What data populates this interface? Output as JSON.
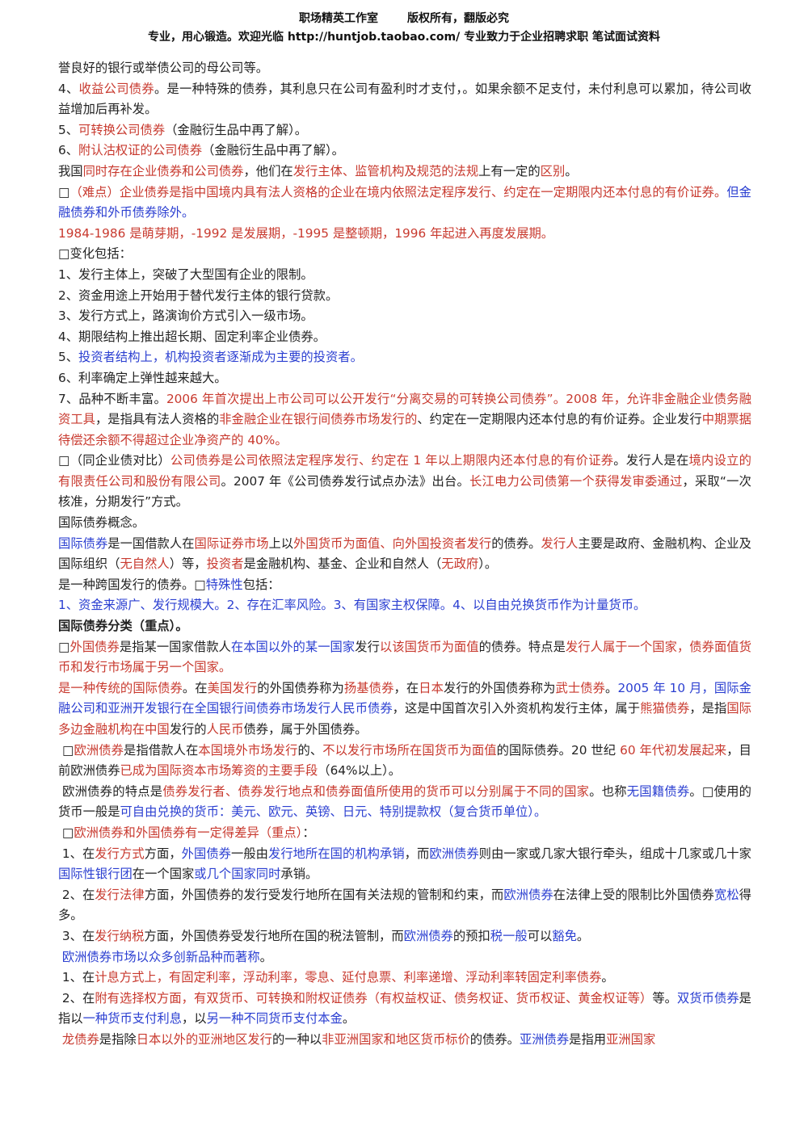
{
  "header": {
    "left": "职场精英工作室",
    "right": "版权所有，翻版必究",
    "subtitle": "专业，用心锻造。欢迎光临 http://huntjob.taobao.com/   专业致力于企业招聘求职 笔试面试资料"
  },
  "paragraphs": [
    {
      "runs": [
        {
          "text": "誉良好的银行或举债公司的母公司等。"
        }
      ]
    },
    {
      "runs": [
        {
          "text": "4、"
        },
        {
          "text": "收益公司债券",
          "color": "#c8392e"
        },
        {
          "text": "。是一种特殊的债券，其利息只在公司有盈利时才支付，。如果余额不足支付，未付利息可以累加，待公司收益增加后再补发。"
        }
      ]
    },
    {
      "runs": [
        {
          "text": "5、"
        },
        {
          "text": "可转换公司债券",
          "color": "#c8392e"
        },
        {
          "text": "（金融衍生品中再了解）。"
        }
      ]
    },
    {
      "runs": [
        {
          "text": "6、"
        },
        {
          "text": "附认沽权证的公司债券",
          "color": "#c8392e"
        },
        {
          "text": "（金融衍生品中再了解）。"
        }
      ]
    },
    {
      "runs": [
        {
          "text": "我国"
        },
        {
          "text": "同时存在企业债券和公司债券",
          "color": "#c8392e"
        },
        {
          "text": "，他们在"
        },
        {
          "text": "发行主体、监管机构及规范的法规",
          "color": "#c8392e"
        },
        {
          "text": "上有一定的"
        },
        {
          "text": "区别",
          "color": "#c8392e"
        },
        {
          "text": "。"
        }
      ]
    },
    {
      "runs": [
        {
          "text": "□"
        },
        {
          "text": "（难点）",
          "color": "#c8392e"
        },
        {
          "text": "企业债券是指中国境内具有法人资格的企业在境内依照法定程序发行、约定在一定期限内还本付息的有价证券。",
          "color": "#c8392e"
        },
        {
          "text": "但金融债券和外币债券除外。",
          "color": "#2b3fd1"
        }
      ]
    },
    {
      "runs": [
        {
          "text": "1984-1986 是萌芽期，-1992 是发展期，-1995 是整顿期，1996 年起进入再度发展期。",
          "color": "#c8392e"
        }
      ]
    },
    {
      "runs": [
        {
          "text": "□变化包括："
        }
      ]
    },
    {
      "runs": [
        {
          "text": "1、发行主体上，突破了大型国有企业的限制。"
        }
      ]
    },
    {
      "runs": [
        {
          "text": "2、资金用途上开始用于替代发行主体的银行贷款。"
        }
      ]
    },
    {
      "runs": [
        {
          "text": "3、发行方式上，路演询价方式引入一级市场。"
        }
      ]
    },
    {
      "runs": [
        {
          "text": "4、期限结构上推出超长期、固定利率企业债券。"
        }
      ]
    },
    {
      "runs": [
        {
          "text": "5、"
        },
        {
          "text": "投资者结构上，机构投资者逐渐成为主要的投资者。",
          "color": "#2b3fd1"
        }
      ]
    },
    {
      "runs": [
        {
          "text": "6、利率确定上弹性越来越大。"
        }
      ]
    },
    {
      "runs": [
        {
          "text": "7、品种不断丰富。"
        },
        {
          "text": "2006 年首次提出上市公司可以公开发行“分离交易的可转换公司债券”。2008 年，允许非金融企业债务融资工具",
          "color": "#c8392e"
        },
        {
          "text": "，是指具有法人资格的"
        },
        {
          "text": "非金融企业在银行间债券市场发行的",
          "color": "#c8392e"
        },
        {
          "text": "、约定在一定期限内还本付息的有价证券。企业发行"
        },
        {
          "text": "中期票据待偿还余额不得超过企业净资产的 40%。",
          "color": "#c8392e"
        }
      ]
    },
    {
      "runs": [
        {
          "text": "□（同企业债对比）"
        },
        {
          "text": "公司债券是公司依照法定程序发行、约定在 1 年以上期限内还本付息的有价证券",
          "color": "#c8392e"
        },
        {
          "text": "。发行人是在"
        },
        {
          "text": "境内设立的有限责任公司和股份有限公司",
          "color": "#c8392e"
        },
        {
          "text": "。2007 年《公司债券发行试点办法》出台。"
        },
        {
          "text": "长江电力公司债第一个获得发审委通过",
          "color": "#c8392e"
        },
        {
          "text": "，采取“一次核准，分期发行”方式。"
        }
      ]
    },
    {
      "runs": [
        {
          "text": "国际债券概念。"
        }
      ]
    },
    {
      "runs": [
        {
          "text": "国际债券",
          "color": "#2b3fd1"
        },
        {
          "text": "是一国借款人在"
        },
        {
          "text": "国际证券市场",
          "color": "#c8392e"
        },
        {
          "text": "上以"
        },
        {
          "text": "外国货币为面值、向外国投资者发行",
          "color": "#c8392e"
        },
        {
          "text": "的债券。"
        },
        {
          "text": "发行人",
          "color": "#c8392e"
        },
        {
          "text": "主要是政府、金融机构、企业及国际组织（"
        },
        {
          "text": "无自然人",
          "color": "#c8392e"
        },
        {
          "text": "）等，"
        },
        {
          "text": "投资者",
          "color": "#c8392e"
        },
        {
          "text": "是金融机构、基金、企业和自然人（"
        },
        {
          "text": "无政府",
          "color": "#c8392e"
        },
        {
          "text": "）。"
        }
      ]
    },
    {
      "runs": [
        {
          "text": "是一种跨国发行的债券。□"
        },
        {
          "text": "特殊性",
          "color": "#2b3fd1"
        },
        {
          "text": "包括："
        }
      ]
    },
    {
      "runs": [
        {
          "text": "1、资金来源广、发行规模大。2、存在汇率风险。3、有国家主权保障。4、以自由兑换货币作为计量货币。",
          "color": "#2b3fd1"
        }
      ]
    },
    {
      "bold": true,
      "runs": [
        {
          "text": "国际债券分类（重点）。"
        }
      ]
    },
    {
      "runs": [
        {
          "text": "□"
        },
        {
          "text": "外国债券",
          "color": "#c8392e"
        },
        {
          "text": "是指某一国家借款人"
        },
        {
          "text": "在本国以外的某一国家",
          "color": "#2b3fd1"
        },
        {
          "text": "发行"
        },
        {
          "text": "以该国货币为面值",
          "color": "#c8392e"
        },
        {
          "text": "的债券。特点是"
        },
        {
          "text": "发行人属于一个国家，债券面值货币和发行市场属于另一个国家。",
          "color": "#c8392e"
        }
      ]
    },
    {
      "runs": [
        {
          "text": "是一种传统的国际债券",
          "color": "#c8392e"
        },
        {
          "text": "。在"
        },
        {
          "text": "美国发行",
          "color": "#c8392e"
        },
        {
          "text": "的外国债券称为"
        },
        {
          "text": "扬基债券",
          "color": "#c8392e"
        },
        {
          "text": "，在"
        },
        {
          "text": "日本",
          "color": "#c8392e"
        },
        {
          "text": "发行的外国债券称为"
        },
        {
          "text": "武士债券",
          "color": "#c8392e"
        },
        {
          "text": "。"
        },
        {
          "text": "2005 年 10 月，国际金融公司和亚洲开发银行在全国银行间债券市场发行人民币债券",
          "color": "#2b3fd1"
        },
        {
          "text": "，这是中国首次引入外资机构发行主体，属于"
        },
        {
          "text": "熊猫债券",
          "color": "#c8392e"
        },
        {
          "text": "，是指"
        },
        {
          "text": "国际多边金融机构在中国",
          "color": "#c8392e"
        },
        {
          "text": "发行的"
        },
        {
          "text": "人民币",
          "color": "#c8392e"
        },
        {
          "text": "债券，属于外国债券。"
        }
      ]
    },
    {
      "runs": [
        {
          "text": " □"
        },
        {
          "text": "欧洲债券",
          "color": "#c8392e"
        },
        {
          "text": "是指借款人在"
        },
        {
          "text": "本国境外市场发行",
          "color": "#c8392e"
        },
        {
          "text": "的、"
        },
        {
          "text": "不以发行市场所在国货币为面值",
          "color": "#c8392e"
        },
        {
          "text": "的国际债券。20 世纪 "
        },
        {
          "text": "60 年代初发展起来",
          "color": "#c8392e"
        },
        {
          "text": "，目前欧洲债券"
        },
        {
          "text": "已成为国际资本市场筹资的主要手段",
          "color": "#c8392e"
        },
        {
          "text": "（64%以上）。"
        }
      ]
    },
    {
      "runs": [
        {
          "text": " 欧洲债券的特点是"
        },
        {
          "text": "债券发行者、债券发行地点和债券面值所使用的货币可以分别属于不同的国家",
          "color": "#c8392e"
        },
        {
          "text": "。也称"
        },
        {
          "text": "无国籍债券",
          "color": "#2b3fd1"
        },
        {
          "text": "。□使用的货币一般是"
        },
        {
          "text": "可自由兑换的货币：美元、欧元、英镑、日元、特别提款权（复合货币单位）。",
          "color": "#2b3fd1"
        }
      ]
    },
    {
      "runs": [
        {
          "text": " □"
        },
        {
          "text": "欧洲债券和外国债券有一定得差异（重点）",
          "color": "#c8392e"
        },
        {
          "text": "："
        }
      ]
    },
    {
      "runs": [
        {
          "text": " 1、在"
        },
        {
          "text": "发行方式",
          "color": "#c8392e"
        },
        {
          "text": "方面，"
        },
        {
          "text": "外国债券",
          "color": "#2b3fd1"
        },
        {
          "text": "一般由"
        },
        {
          "text": "发行地所在国的机构承销",
          "color": "#2b3fd1"
        },
        {
          "text": "，而"
        },
        {
          "text": "欧洲债券",
          "color": "#2b3fd1"
        },
        {
          "text": "则由一家或几家大银行牵头，组成十几家或几十家"
        },
        {
          "text": "国际性银行团",
          "color": "#2b3fd1"
        },
        {
          "text": "在一个国家"
        },
        {
          "text": "或几个国家同时",
          "color": "#2b3fd1"
        },
        {
          "text": "承销。"
        }
      ]
    },
    {
      "runs": [
        {
          "text": " 2、在"
        },
        {
          "text": "发行法律",
          "color": "#c8392e"
        },
        {
          "text": "方面，外国债券的发行受发行地所在国有关法规的管制和约束，而"
        },
        {
          "text": "欧洲债券",
          "color": "#2b3fd1"
        },
        {
          "text": "在法律上受的限制比外国债券"
        },
        {
          "text": "宽松",
          "color": "#2b3fd1"
        },
        {
          "text": "得多。"
        }
      ]
    },
    {
      "runs": [
        {
          "text": " 3、在"
        },
        {
          "text": "发行纳税",
          "color": "#c8392e"
        },
        {
          "text": "方面，外国债券受发行地所在国的税法管制，而"
        },
        {
          "text": "欧洲债券",
          "color": "#2b3fd1"
        },
        {
          "text": "的预扣"
        },
        {
          "text": "税一般",
          "color": "#2b3fd1"
        },
        {
          "text": "可以"
        },
        {
          "text": "豁免",
          "color": "#2b3fd1"
        },
        {
          "text": "。"
        }
      ]
    },
    {
      "runs": [
        {
          "text": " "
        },
        {
          "text": "欧洲债券市场以众多创新品种而著称",
          "color": "#2b3fd1"
        },
        {
          "text": "。"
        }
      ]
    },
    {
      "runs": [
        {
          "text": " 1、在"
        },
        {
          "text": "计息方式上，有固定利率，浮动利率，零息、延付息票、利率递增、浮动利率转固定利率债券",
          "color": "#c8392e"
        },
        {
          "text": "。"
        }
      ]
    },
    {
      "runs": [
        {
          "text": " 2、在"
        },
        {
          "text": "附有选择权方面，有双货币、可转换和附权证债券（有权益权证、债务权证、货币权证、黄金权证等）",
          "color": "#c8392e"
        },
        {
          "text": "等。"
        },
        {
          "text": "双货币债券",
          "color": "#2b3fd1"
        },
        {
          "text": "是指以"
        },
        {
          "text": "一种货币支付利息",
          "color": "#2b3fd1"
        },
        {
          "text": "，以"
        },
        {
          "text": "另一种不同货币支付本金",
          "color": "#2b3fd1"
        },
        {
          "text": "。"
        }
      ]
    },
    {
      "runs": [
        {
          "text": " "
        },
        {
          "text": "龙债券",
          "color": "#c8392e"
        },
        {
          "text": "是指除"
        },
        {
          "text": "日本以外的亚洲地区发行",
          "color": "#c8392e"
        },
        {
          "text": "的一种以"
        },
        {
          "text": "非亚洲国家和地区货币标价",
          "color": "#c8392e"
        },
        {
          "text": "的债券。"
        },
        {
          "text": "亚洲债券",
          "color": "#2b3fd1"
        },
        {
          "text": "是指用"
        },
        {
          "text": "亚洲国家",
          "color": "#c8392e"
        }
      ]
    }
  ]
}
